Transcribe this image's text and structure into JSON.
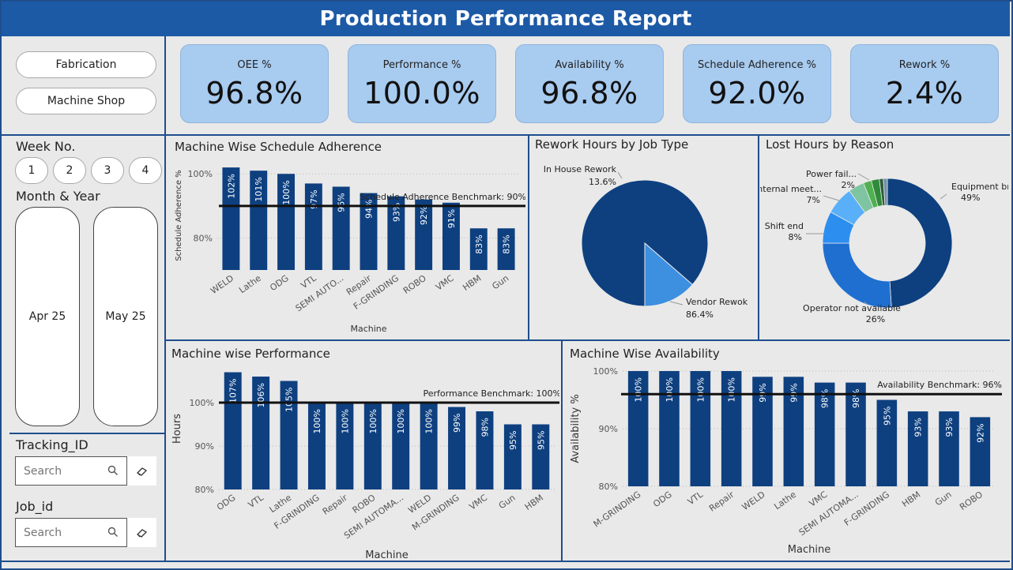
{
  "header": {
    "title": "Production Performance Report"
  },
  "slicers": {
    "departments": [
      "Fabrication",
      "Machine Shop"
    ],
    "week_label": "Week No.",
    "weeks": [
      "1",
      "2",
      "3",
      "4"
    ],
    "month_label": "Month & Year",
    "months": [
      "Apr 25",
      "May 25"
    ],
    "tracking_label": "Tracking_ID",
    "tracking_placeholder": "Search",
    "job_label": "Job_id",
    "job_placeholder": "Search"
  },
  "kpis": [
    {
      "label": "OEE %",
      "value": "96.8%"
    },
    {
      "label": "Performance %",
      "value": "100.0%"
    },
    {
      "label": "Availability %",
      "value": "96.8%"
    },
    {
      "label": "Schedule Adherence %",
      "value": "92.0%"
    },
    {
      "label": "Rework %",
      "value": "2.4%"
    }
  ],
  "colors": {
    "bar": "#0e4080",
    "header": "#1d5aa6",
    "kpi_bg": "#a8cbf0",
    "benchmark": "#111111"
  },
  "chart_data": [
    {
      "type": "bar",
      "title": "Machine Wise Schedule Adherence",
      "xlabel": "Machine",
      "ylabel": "Schedule Adherence %",
      "categories": [
        "WELD",
        "Lathe",
        "ODG",
        "VTL",
        "SEMI AUTO...",
        "Repair",
        "F-GRINDING",
        "ROBO",
        "VMC",
        "HBM",
        "Gun"
      ],
      "values": [
        102,
        101,
        100,
        97,
        96,
        94,
        93,
        92,
        91,
        83,
        83
      ],
      "value_labels": [
        "102%",
        "101%",
        "100%",
        "97%",
        "96%",
        "94%",
        "93%",
        "92%",
        "91%",
        "83%",
        "83%"
      ],
      "yticks": [
        80,
        100
      ],
      "ytick_labels": [
        "80%",
        "100%"
      ],
      "ylim": [
        70,
        104
      ],
      "benchmark": {
        "value": 90,
        "label": "Schedule Adherence Benchmark: 90%"
      }
    },
    {
      "type": "pie",
      "title": "Rework Hours by Job Type",
      "slices": [
        {
          "label": "Vendor Rewok",
          "pct": "86.4%",
          "value": 86.4
        },
        {
          "label": "In House Rework",
          "pct": "13.6%",
          "value": 13.6
        }
      ]
    },
    {
      "type": "pie",
      "donut": true,
      "title": "Lost Hours by Reason",
      "slices": [
        {
          "label": "Equipment br.",
          "pct": "49%",
          "value": 49
        },
        {
          "label": "Operator not available",
          "pct": "26%",
          "value": 26
        },
        {
          "label": "Shift end",
          "pct": "8%",
          "value": 8
        },
        {
          "label": "Internal meet...",
          "pct": "7%",
          "value": 7
        },
        {
          "label": "",
          "pct": "",
          "value": 4
        },
        {
          "label": "",
          "pct": "",
          "value": 2
        },
        {
          "label": "Power fail...",
          "pct": "2%",
          "value": 2
        },
        {
          "label": "",
          "pct": "",
          "value": 1
        },
        {
          "label": "",
          "pct": "",
          "value": 1
        }
      ]
    },
    {
      "type": "bar",
      "title": "Machine wise Performance",
      "xlabel": "Machine",
      "ylabel": "Hours",
      "categories": [
        "ODG",
        "VTL",
        "Lathe",
        "F-GRINDING",
        "Repair",
        "ROBO",
        "SEMI AUTOMA...",
        "WELD",
        "M-GRINDING",
        "VMC",
        "Gun",
        "HBM"
      ],
      "values": [
        107,
        106,
        105,
        100,
        100,
        100,
        100,
        100,
        99,
        98,
        95,
        95
      ],
      "value_labels": [
        "107%",
        "106%",
        "105%",
        "100%",
        "100%",
        "100%",
        "100%",
        "100%",
        "99%",
        "98%",
        "95%",
        "95%"
      ],
      "yticks": [
        80,
        90,
        100
      ],
      "ytick_labels": [
        "80%",
        "90%",
        "100%"
      ],
      "ylim": [
        80,
        108
      ],
      "benchmark": {
        "value": 100,
        "label": "Performance Benchmark: 100%"
      }
    },
    {
      "type": "bar",
      "title": "Machine Wise Availability",
      "xlabel": "Machine",
      "ylabel": "Availability %",
      "categories": [
        "M-GRINDING",
        "ODG",
        "VTL",
        "Repair",
        "WELD",
        "Lathe",
        "VMC",
        "SEMI AUTOMA...",
        "F-GRINDING",
        "HBM",
        "Gun",
        "ROBO"
      ],
      "values": [
        100,
        100,
        100,
        100,
        99,
        99,
        98,
        98,
        95,
        93,
        93,
        92
      ],
      "value_labels": [
        "100%",
        "100%",
        "100%",
        "100%",
        "99%",
        "99%",
        "98%",
        "98%",
        "95%",
        "93%",
        "93%",
        "92%"
      ],
      "yticks": [
        80,
        90,
        100
      ],
      "ytick_labels": [
        "80%",
        "90%",
        "100%"
      ],
      "ylim": [
        80,
        100
      ],
      "benchmark": {
        "value": 96,
        "label": "Availability Benchmark: 96%"
      }
    }
  ]
}
